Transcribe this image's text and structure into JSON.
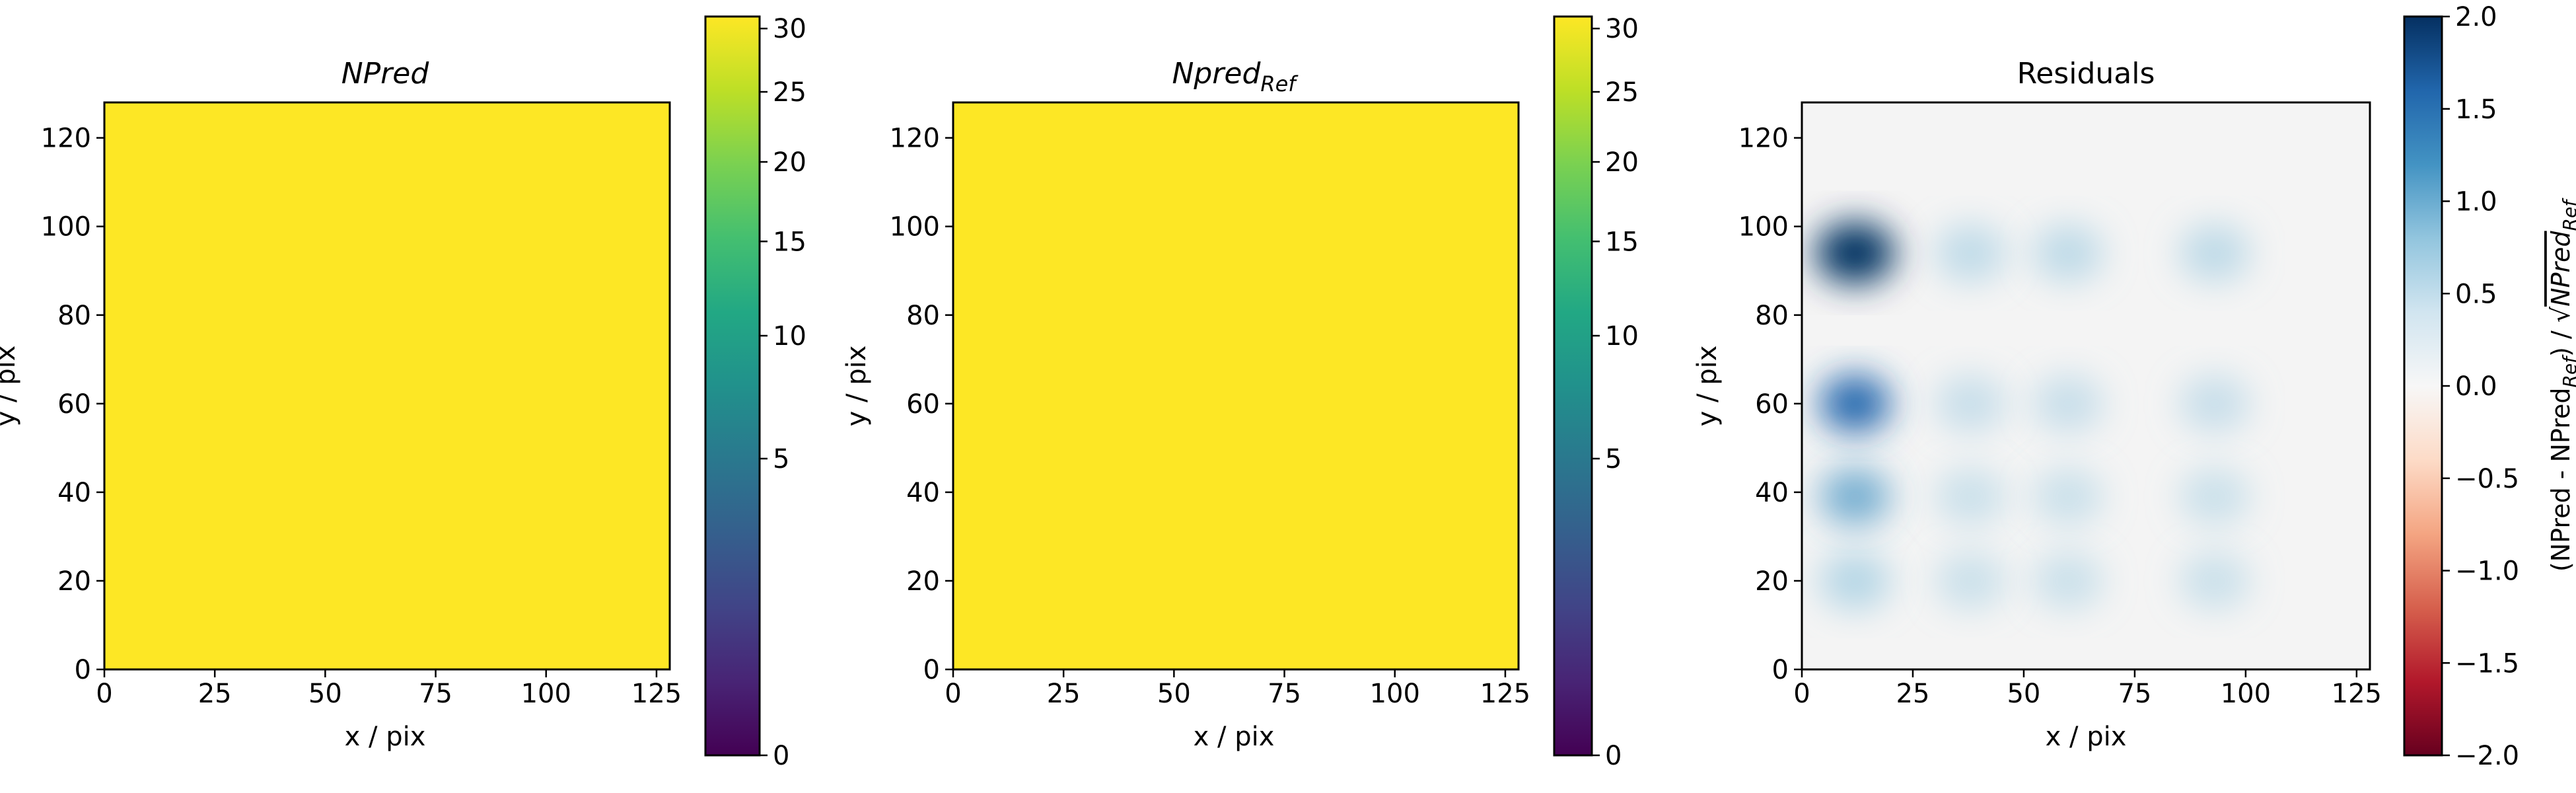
{
  "chart_data": [
    {
      "type": "heatmap",
      "title": "NPred",
      "xlabel": "x / pix",
      "ylabel": "y / pix",
      "xlim": [
        0,
        128
      ],
      "ylim": [
        0,
        128
      ],
      "xticks": [
        0,
        25,
        50,
        75,
        100,
        125
      ],
      "yticks": [
        0,
        20,
        40,
        60,
        80,
        100,
        120
      ],
      "fill_value": 31,
      "fill_color": "#fde725",
      "colorbar": {
        "scale": "sqrt",
        "range": [
          0,
          31
        ],
        "ticks": [
          0,
          5,
          10,
          15,
          20,
          25,
          30
        ],
        "colormap": "viridis"
      }
    },
    {
      "type": "heatmap",
      "title": "Npred",
      "title_subscript": "Ref",
      "xlabel": "x / pix",
      "ylabel": "y / pix",
      "xlim": [
        0,
        128
      ],
      "ylim": [
        0,
        128
      ],
      "xticks": [
        0,
        25,
        50,
        75,
        100,
        125
      ],
      "yticks": [
        0,
        20,
        40,
        60,
        80,
        100,
        120
      ],
      "fill_value": 31,
      "fill_color": "#fde725",
      "colorbar": {
        "scale": "sqrt",
        "range": [
          0,
          31
        ],
        "ticks": [
          0,
          5,
          10,
          15,
          20,
          25,
          30
        ],
        "colormap": "viridis"
      }
    },
    {
      "type": "heatmap",
      "title": "Residuals",
      "xlabel": "x / pix",
      "ylabel": "y / pix",
      "xlim": [
        0,
        128
      ],
      "ylim": [
        0,
        128
      ],
      "xticks": [
        0,
        25,
        50,
        75,
        100,
        125
      ],
      "yticks": [
        0,
        20,
        40,
        60,
        80,
        100,
        120
      ],
      "background_value": 0.0,
      "blobs": [
        {
          "x": 12,
          "y": 94,
          "value": 2.0
        },
        {
          "x": 38,
          "y": 94,
          "value": 0.4
        },
        {
          "x": 60,
          "y": 94,
          "value": 0.45
        },
        {
          "x": 93,
          "y": 94,
          "value": 0.45
        },
        {
          "x": 12,
          "y": 60,
          "value": 1.4
        },
        {
          "x": 38,
          "y": 60,
          "value": 0.25
        },
        {
          "x": 60,
          "y": 60,
          "value": 0.25
        },
        {
          "x": 93,
          "y": 60,
          "value": 0.25
        },
        {
          "x": 12,
          "y": 39,
          "value": 0.8
        },
        {
          "x": 38,
          "y": 39,
          "value": 0.15
        },
        {
          "x": 60,
          "y": 39,
          "value": 0.15
        },
        {
          "x": 93,
          "y": 39,
          "value": 0.15
        },
        {
          "x": 12,
          "y": 20,
          "value": 0.65
        },
        {
          "x": 38,
          "y": 20,
          "value": 0.15
        },
        {
          "x": 60,
          "y": 20,
          "value": 0.15
        },
        {
          "x": 93,
          "y": 20,
          "value": 0.15
        }
      ],
      "colorbar": {
        "scale": "linear",
        "range": [
          -2.0,
          2.0
        ],
        "ticks": [
          -2.0,
          -1.5,
          -1.0,
          -0.5,
          0.0,
          0.5,
          1.0,
          1.5,
          2.0
        ],
        "tick_labels": [
          "−2.0",
          "−1.5",
          "−1.0",
          "−0.5",
          "0.0",
          "0.5",
          "1.0",
          "1.5",
          "2.0"
        ],
        "colormap": "RdBu",
        "label_prefix": "(NPred - NPred",
        "label_sub1": "Ref",
        "label_middle": ") / √",
        "label_sqrt_term": "NPred",
        "label_sub2": "Ref"
      }
    }
  ]
}
